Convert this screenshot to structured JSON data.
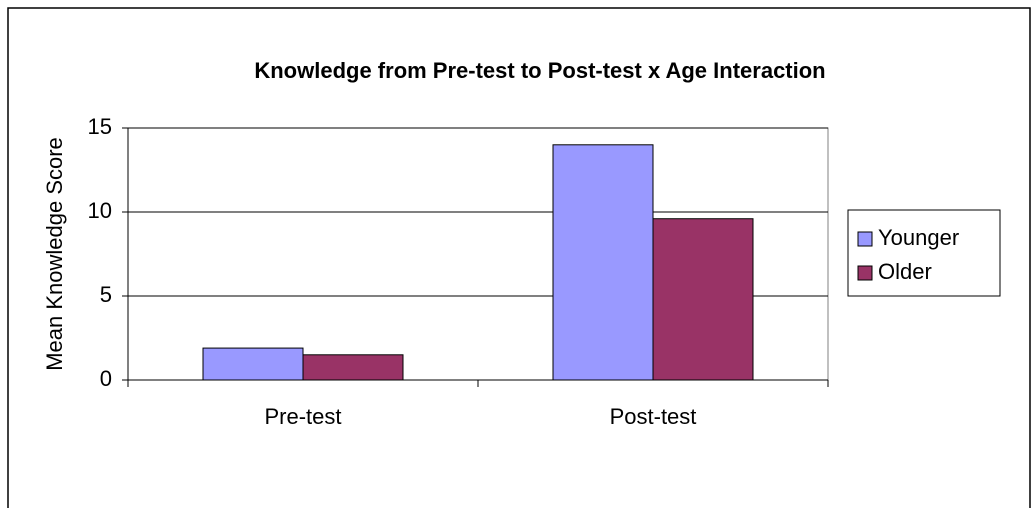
{
  "chart_data": {
    "type": "bar",
    "title": "Knowledge from Pre-test to Post-test x Age Interaction",
    "y_label": "Mean Knowledge Score",
    "categories": [
      "Pre-test",
      "Post-test"
    ],
    "series": [
      {
        "name": "Younger",
        "color": "#9999ff",
        "values": [
          1.9,
          14
        ]
      },
      {
        "name": "Older",
        "color": "#993366",
        "values": [
          1.5,
          9.6
        ]
      }
    ],
    "ylim": [
      0,
      15
    ],
    "yticks": [
      0,
      5,
      10,
      15
    ],
    "grid": true,
    "legend": "right"
  }
}
